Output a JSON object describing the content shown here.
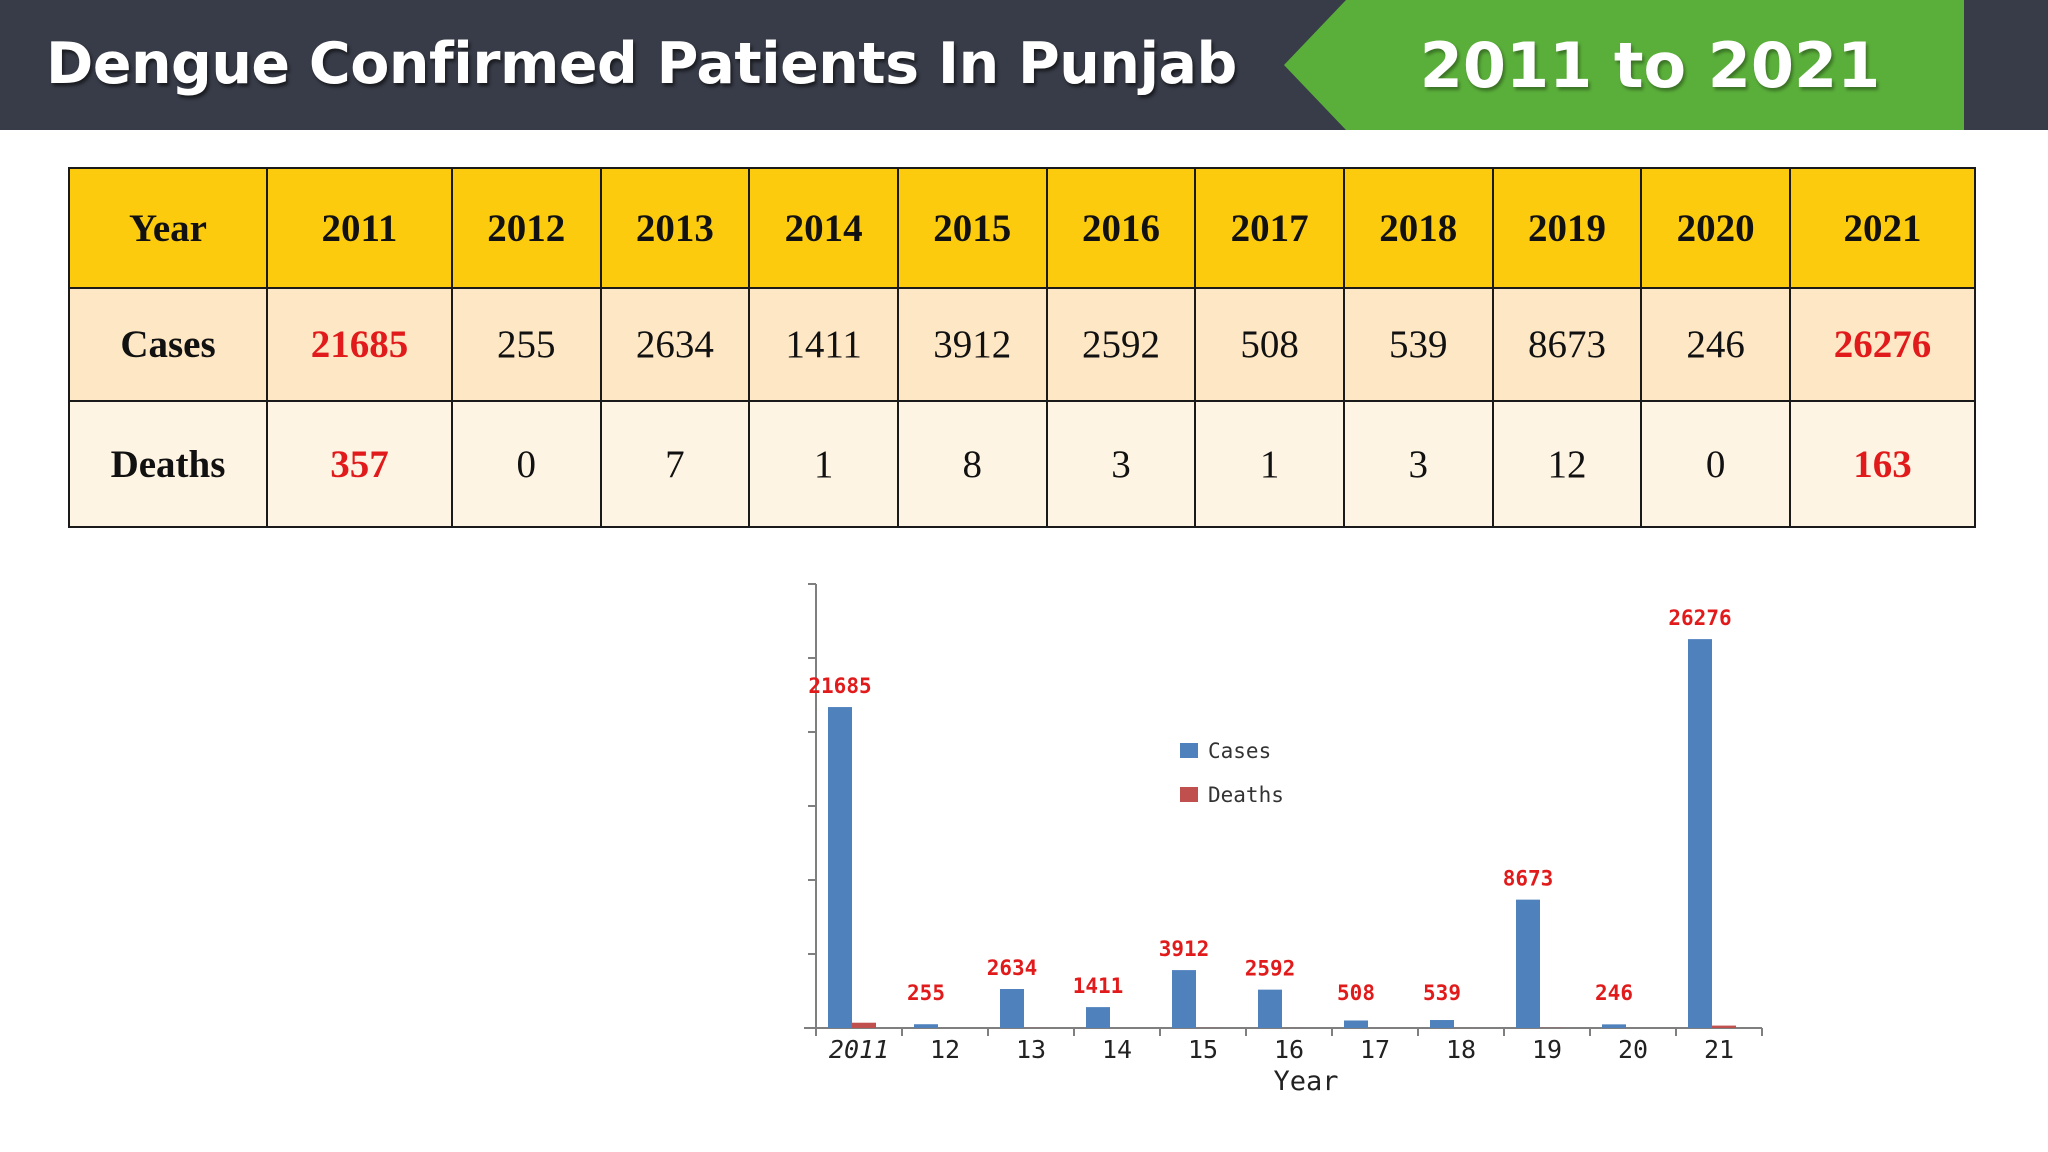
{
  "header": {
    "title": "Dengue Confirmed Patients In Punjab",
    "range": "2011 to 2021"
  },
  "colors": {
    "header_bg": "#383c48",
    "range_bg": "#5aaf3a",
    "table_header_bg": "#fdcb0e",
    "highlight": "#e11b1b",
    "cases_bar": "#4f81bd",
    "deaths_bar": "#c0504d"
  },
  "table": {
    "row_labels": {
      "year": "Year",
      "cases": "Cases",
      "deaths": "Deaths"
    },
    "years": [
      "2011",
      "2012",
      "2013",
      "2014",
      "2015",
      "2016",
      "2017",
      "2018",
      "2019",
      "2020",
      "2021"
    ],
    "cases": [
      "21685",
      "255",
      "2634",
      "1411",
      "3912",
      "2592",
      "508",
      "539",
      "8673",
      "246",
      "26276"
    ],
    "deaths": [
      "357",
      "0",
      "7",
      "1",
      "8",
      "3",
      "1",
      "3",
      "12",
      "0",
      "163"
    ],
    "highlighted_years": [
      "2011",
      "2021"
    ]
  },
  "chart_data": {
    "type": "bar",
    "categories": [
      "2011",
      "12",
      "13",
      "14",
      "15",
      "16",
      "17",
      "18",
      "19",
      "20",
      "21"
    ],
    "series": [
      {
        "name": "Cases",
        "values": [
          21685,
          255,
          2634,
          1411,
          3912,
          2592,
          508,
          539,
          8673,
          246,
          26276
        ]
      },
      {
        "name": "Deaths",
        "values": [
          357,
          0,
          7,
          1,
          8,
          3,
          1,
          3,
          12,
          0,
          163
        ]
      }
    ],
    "data_labels": [
      "21685",
      "255",
      "2634",
      "1411",
      "3912",
      "2592",
      "508",
      "539",
      "8673",
      "246",
      "26276"
    ],
    "xlabel": "Year",
    "ylabel": "",
    "ylim": [
      0,
      30000
    ],
    "grid": false,
    "legend_position": "center"
  }
}
